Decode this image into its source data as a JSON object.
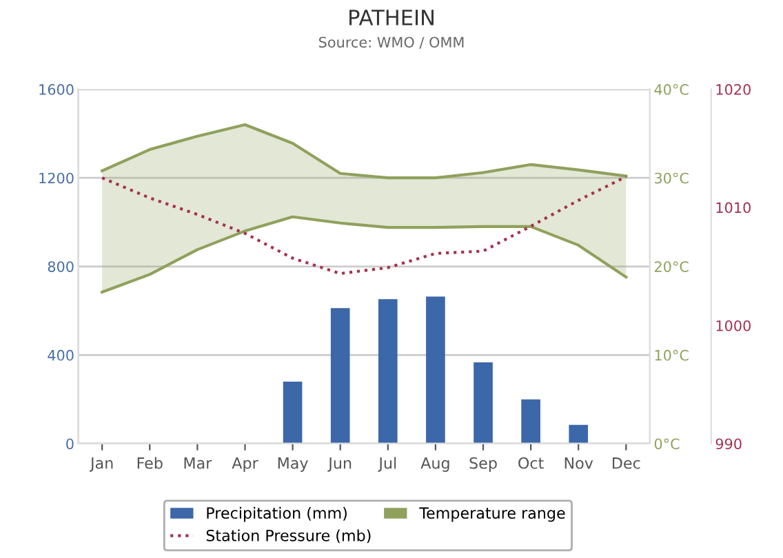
{
  "chart_data": {
    "type": "bar",
    "title": "PATHEIN",
    "subtitle": "Source: WMO / OMM",
    "categories": [
      "Jan",
      "Feb",
      "Mar",
      "Apr",
      "May",
      "Jun",
      "Jul",
      "Aug",
      "Sep",
      "Oct",
      "Nov",
      "Dec"
    ],
    "series": [
      {
        "name": "Precipitation (mm)",
        "color": "#3c67a8",
        "values": [
          0,
          0,
          0,
          0,
          280,
          612,
          652,
          664,
          367,
          200,
          85,
          0
        ]
      },
      {
        "name": "Station Pressure (mb)",
        "type": "line",
        "axis": "y3",
        "color": "#a3324f",
        "line_style": "dotted",
        "values": [
          1012.5,
          1010.8,
          1009.4,
          1007.8,
          1005.7,
          1004.4,
          1004.9,
          1006.1,
          1006.3,
          1008.4,
          1010.6,
          1012.6
        ]
      },
      {
        "type": "line",
        "axis": "y2",
        "color": "#8fa15c",
        "values": [
          17.1,
          19.1,
          21.9,
          24.0,
          25.6,
          24.9,
          24.4,
          24.4,
          24.5,
          24.5,
          22.4,
          18.8
        ]
      },
      {
        "name": "Temperature range",
        "type": "area",
        "axis": "y2",
        "color": "#8fa15c",
        "values": [
          30.8,
          33.2,
          34.7,
          36.0,
          33.9,
          30.5,
          30.0,
          30.0,
          30.6,
          31.5,
          30.9,
          30.2
        ]
      }
    ],
    "ylim": [
      0,
      1600
    ],
    "yticks": [
      0,
      400,
      800,
      1200,
      1600
    ],
    "y2lim": [
      0,
      40
    ],
    "y2ticks": [
      {
        "value": 0,
        "label": "0°C"
      },
      {
        "value": 10,
        "label": "10°C"
      },
      {
        "value": 20,
        "label": "20°C"
      },
      {
        "value": 30,
        "label": "30°C"
      },
      {
        "value": 40,
        "label": "40°C"
      }
    ],
    "y3lim": [
      990,
      1020
    ],
    "y3ticks": [
      990,
      1000,
      1010,
      1020
    ],
    "grid": "y",
    "legend": "bottom"
  }
}
